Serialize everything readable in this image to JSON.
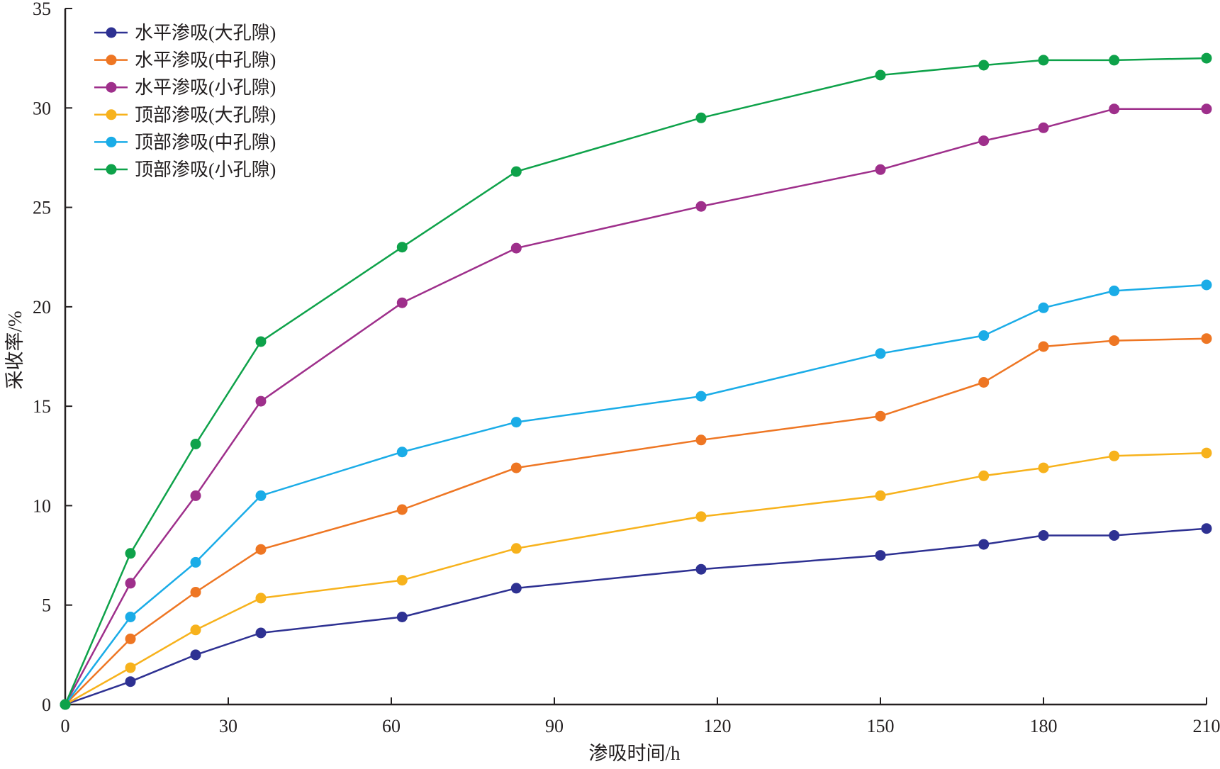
{
  "chart_data": {
    "type": "line",
    "xlabel": "渗吸时间/h",
    "ylabel": "采收率/%",
    "xlim": [
      0,
      210
    ],
    "ylim": [
      0,
      35
    ],
    "xticks": [
      0,
      30,
      60,
      90,
      120,
      150,
      180,
      210
    ],
    "yticks": [
      0,
      5,
      10,
      15,
      20,
      25,
      30,
      35
    ],
    "grid": false,
    "legend_position": "top-left",
    "x": [
      0,
      12,
      24,
      36,
      62,
      83,
      117,
      150,
      169,
      180,
      193,
      210
    ],
    "series": [
      {
        "name": "水平渗吸(大孔隙)",
        "color": "#2e3192",
        "values": [
          0,
          1.15,
          2.5,
          3.6,
          4.4,
          5.85,
          6.8,
          7.5,
          8.05,
          8.5,
          8.5,
          8.85
        ]
      },
      {
        "name": "水平渗吸(中孔隙)",
        "color": "#ee7623",
        "values": [
          0,
          3.3,
          5.65,
          7.8,
          9.8,
          11.9,
          13.3,
          14.5,
          16.2,
          18.0,
          18.3,
          18.4
        ]
      },
      {
        "name": "水平渗吸(小孔隙)",
        "color": "#9e2f8b",
        "values": [
          0,
          6.1,
          10.5,
          15.25,
          20.2,
          22.95,
          25.05,
          26.9,
          28.35,
          29.0,
          29.95,
          29.95
        ]
      },
      {
        "name": "顶部渗吸(大孔隙)",
        "color": "#f7b21c",
        "values": [
          0,
          1.85,
          3.75,
          5.35,
          6.25,
          7.85,
          9.45,
          10.5,
          11.5,
          11.9,
          12.5,
          12.65
        ]
      },
      {
        "name": "顶部渗吸(中孔隙)",
        "color": "#1aace7",
        "values": [
          0,
          4.4,
          7.15,
          10.5,
          12.7,
          14.2,
          15.5,
          17.65,
          18.55,
          19.95,
          20.8,
          21.1
        ]
      },
      {
        "name": "顶部渗吸(小孔隙)",
        "color": "#0ea24a",
        "values": [
          0,
          7.6,
          13.1,
          18.25,
          23.0,
          26.8,
          29.5,
          31.65,
          32.15,
          32.4,
          32.4,
          32.5
        ]
      }
    ]
  }
}
